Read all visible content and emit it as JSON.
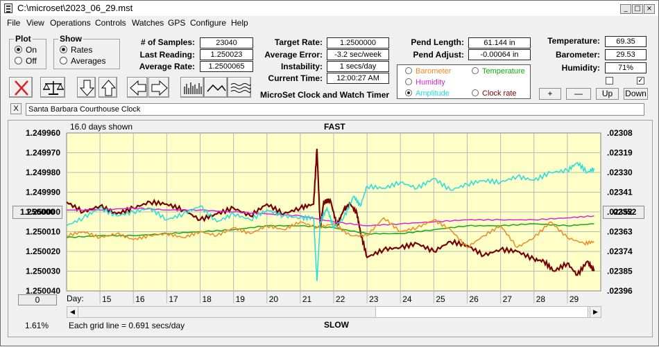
{
  "window": {
    "title": "C:\\microset\\2023_06_29.mst",
    "min": "_",
    "max": "□",
    "close": "×"
  },
  "menu": [
    "File",
    "View",
    "Operations",
    "Controls",
    "Watches",
    "GPS",
    "Configure",
    "Help"
  ],
  "plot_group": {
    "title": "Plot",
    "on": "On",
    "off": "Off",
    "selected": "on"
  },
  "show_group": {
    "title": "Show",
    "rates": "Rates",
    "averages": "Averages",
    "selected": "rates"
  },
  "stats": {
    "samples_label": "# of Samples:",
    "samples": "23040",
    "last_label": "Last Reading:",
    "last": "1.250023",
    "avg_label": "Average Rate:",
    "avg": "1.2500065",
    "target_label": "Target Rate:",
    "target": "1.2500000",
    "avgerr_label": "Average Error:",
    "avgerr": "-3.2 sec/week",
    "instab_label": "Instability:",
    "instab": "1 secs/day",
    "time_label": "Current Time:",
    "time": "12:00:27 AM",
    "pendlen_label": "Pend Length:",
    "pendlen": "61.144 in",
    "pendadj_label": "Pend Adjust:",
    "pendadj": "-0.00064 in",
    "temp_label": "Temperature:",
    "temp": "69.35",
    "baro_label": "Barometer:",
    "baro": "29.53",
    "hum_label": "Humidity:",
    "hum": "71%"
  },
  "caption": "MicroSet Clock and Watch Timer",
  "plot_select": {
    "barometer": "Barometer",
    "temperature": "Temperature",
    "humidity": "Humidity",
    "amplitude": "Amplitude",
    "clock_rate": "Clock rate",
    "selected": "amplitude"
  },
  "colors": {
    "barometer": "#ee8822",
    "temperature": "#11aa11",
    "humidity": "#dd22dd",
    "amplitude": "#22dddd",
    "rate": "#7a0000",
    "plot_bg": "#ffffc8",
    "grid": "#b8b8b8"
  },
  "checks": {
    "left": false,
    "right": true
  },
  "scale_buttons": {
    "plus": "+",
    "minus": "—",
    "up": "Up",
    "down": "Down"
  },
  "clock_name": "Santa Barbara Courthouse Clock",
  "name_close": "X",
  "chart": {
    "days_shown": "16.0 days shown",
    "fast": "FAST",
    "slow": "SLOW",
    "grid_note": "Each grid line = 0.691 secs/day",
    "percent": "1.61%",
    "center_left": "1.250000",
    "center_right": ".02352",
    "zero_button": "0",
    "day_label": "Day:"
  },
  "chart_data": {
    "type": "line",
    "xlabel": "Day:",
    "x_range": [
      14.0,
      30.0
    ],
    "x_ticks": [
      15,
      16,
      17,
      18,
      19,
      20,
      21,
      22,
      23,
      24,
      25,
      26,
      27,
      28,
      29
    ],
    "y_left_ticks": [
      "1.249960",
      "1.249970",
      "1.249980",
      "1.249990",
      "1.250000",
      "1.250010",
      "1.250020",
      "1.250030",
      "1.250040"
    ],
    "y_right_ticks": [
      ".02308",
      ".02319",
      ".02330",
      ".02341",
      ".02352",
      ".02363",
      ".02374",
      ".02385",
      ".02396"
    ],
    "y_range": [
      1.24996,
      1.25004
    ],
    "y_inverted": true,
    "grid": true,
    "series": [
      {
        "name": "Clock rate",
        "color_key": "rate",
        "x": [
          14.0,
          14.5,
          15.0,
          15.5,
          16.0,
          16.5,
          17.0,
          17.5,
          18.0,
          18.5,
          19.0,
          19.5,
          20.0,
          20.5,
          21.0,
          21.4,
          21.5,
          21.6,
          21.7,
          21.9,
          22.1,
          22.3,
          22.5,
          22.7,
          22.8,
          23.0,
          23.5,
          24.0,
          24.5,
          25.0,
          25.5,
          26.0,
          26.5,
          27.0,
          27.5,
          28.0,
          28.3,
          28.6,
          29.0,
          29.3,
          29.6,
          29.8
        ],
        "y": [
          1.249995,
          1.25,
          1.249997,
          1.250001,
          1.249998,
          1.249995,
          1.249996,
          1.249999,
          1.250004,
          1.250001,
          1.249998,
          1.250002,
          1.249996,
          1.250001,
          1.249998,
          1.249996,
          1.249968,
          1.250008,
          1.249995,
          1.249994,
          1.250007,
          1.249999,
          1.249996,
          1.250001,
          1.25001,
          1.250023,
          1.250019,
          1.250018,
          1.250016,
          1.25002,
          1.250015,
          1.250017,
          1.250022,
          1.250019,
          1.25002,
          1.250024,
          1.250025,
          1.25003,
          1.250026,
          1.250032,
          1.250025,
          1.25003
        ]
      },
      {
        "name": "Temperature",
        "color_key": "temperature",
        "x": [
          14.0,
          15.0,
          16.0,
          17.0,
          18.0,
          19.0,
          20.0,
          21.0,
          22.0,
          23.0,
          24.0,
          25.0,
          26.0,
          27.0,
          28.0,
          29.0,
          29.8
        ],
        "y": [
          1.250013,
          1.250012,
          1.250012,
          1.250011,
          1.25001,
          1.250009,
          1.250007,
          1.250007,
          1.250008,
          1.250011,
          1.250011,
          1.250009,
          1.250007,
          1.250007,
          1.250006,
          1.250007,
          1.250006
        ]
      },
      {
        "name": "Humidity",
        "color_key": "humidity",
        "x": [
          14.0,
          15.0,
          16.0,
          17.0,
          18.0,
          19.0,
          20.0,
          21.0,
          22.0,
          23.0,
          24.0,
          25.0,
          26.0,
          27.0,
          28.0,
          29.0,
          29.8
        ],
        "y": [
          1.249999,
          1.249999,
          1.249998,
          1.249999,
          1.249999,
          1.25,
          1.250001,
          1.250002,
          1.250005,
          1.250007,
          1.250006,
          1.250005,
          1.250004,
          1.250004,
          1.250004,
          1.250003,
          1.250002
        ]
      },
      {
        "name": "Barometer",
        "color_key": "barometer",
        "x": [
          14.0,
          14.5,
          15.0,
          15.5,
          16.0,
          16.5,
          17.0,
          17.5,
          18.0,
          18.5,
          19.0,
          19.5,
          20.0,
          20.5,
          21.0,
          21.5,
          22.0,
          22.5,
          23.0,
          23.5,
          24.0,
          24.5,
          25.0,
          25.5,
          26.0,
          26.5,
          27.0,
          27.5,
          28.0,
          28.5,
          29.0,
          29.5,
          29.8
        ],
        "y": [
          1.250012,
          1.25001,
          1.250013,
          1.250011,
          1.250014,
          1.250012,
          1.250011,
          1.250013,
          1.25001,
          1.250012,
          1.250008,
          1.250011,
          1.250007,
          1.250009,
          1.250005,
          1.250008,
          1.250006,
          1.250012,
          1.250012,
          1.250003,
          1.25001,
          1.250008,
          1.250004,
          1.250009,
          1.250018,
          1.250012,
          1.250007,
          1.250018,
          1.250013,
          1.250005,
          1.250013,
          1.250016,
          1.250015
        ]
      },
      {
        "name": "Amplitude",
        "color_key": "amplitude",
        "x": [
          14.0,
          14.5,
          15.0,
          15.5,
          16.0,
          16.5,
          17.0,
          17.5,
          18.0,
          18.5,
          19.0,
          19.5,
          20.0,
          20.5,
          21.0,
          21.4,
          21.5,
          21.6,
          21.8,
          22.0,
          22.3,
          22.6,
          22.8,
          23.0,
          23.5,
          24.0,
          24.5,
          25.0,
          25.5,
          26.0,
          26.5,
          27.0,
          27.5,
          28.0,
          28.5,
          29.0,
          29.3,
          29.6,
          29.8
        ],
        "y": [
          1.250007,
          1.250003,
          1.249998,
          1.250002,
          1.25,
          1.249998,
          1.250004,
          1.250001,
          1.249997,
          1.250005,
          1.250001,
          1.250004,
          1.249999,
          1.250002,
          1.250003,
          1.250003,
          1.250035,
          1.250005,
          1.249998,
          1.250008,
          1.250003,
          1.249992,
          1.249997,
          1.249987,
          1.249988,
          1.249985,
          1.249988,
          1.249983,
          1.249989,
          1.249986,
          1.249984,
          1.249985,
          1.249982,
          1.249984,
          1.24998,
          1.249979,
          1.249975,
          1.24998,
          1.249978
        ]
      }
    ]
  }
}
